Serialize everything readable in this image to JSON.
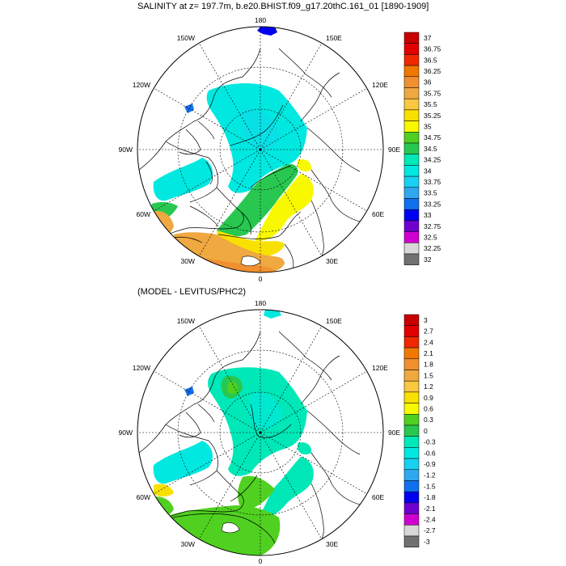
{
  "titles": {
    "top": "SALINITY at z= 197.7m, b.e20.BHIST.f09_g17.20thC.161_01 [1890-1909]",
    "bottom": "(MODEL - LEVITUS/PHC2)"
  },
  "longitude_labels": [
    "180",
    "150E",
    "120E",
    "90E",
    "60E",
    "30E",
    "0",
    "30W",
    "60W",
    "90W",
    "120W",
    "150W"
  ],
  "colorbars": {
    "top": {
      "labels": [
        "37",
        "36.75",
        "36.5",
        "36.25",
        "36",
        "35.75",
        "35.5",
        "35.25",
        "35",
        "34.75",
        "34.5",
        "34.25",
        "34",
        "33.75",
        "33.5",
        "33.25",
        "33",
        "32.75",
        "32.5",
        "32.25",
        "32"
      ],
      "colors": [
        "#c80000",
        "#e00000",
        "#f02800",
        "#f07800",
        "#f09030",
        "#f0a840",
        "#f8c840",
        "#f8e000",
        "#f8f800",
        "#50d020",
        "#28c850",
        "#00e8b8",
        "#00e8e0",
        "#18d0f0",
        "#30a8f0",
        "#1070f0",
        "#0000f0",
        "#7000d0",
        "#d000d0",
        "#d8d8d8",
        "#707070"
      ]
    },
    "bottom": {
      "labels": [
        "3",
        "2.7",
        "2.4",
        "2.1",
        "1.8",
        "1.5",
        "1.2",
        "0.9",
        "0.6",
        "0.3",
        "0",
        "-0.3",
        "-0.6",
        "-0.9",
        "-1.2",
        "-1.5",
        "-1.8",
        "-2.1",
        "-2.4",
        "-2.7",
        "-3"
      ],
      "colors": [
        "#c80000",
        "#e00000",
        "#f02800",
        "#f07800",
        "#f09030",
        "#f0a840",
        "#f8c840",
        "#f8e000",
        "#f8f800",
        "#50d020",
        "#28c850",
        "#00e8b8",
        "#00e8e0",
        "#18d0f0",
        "#30a8f0",
        "#1070f0",
        "#0000f0",
        "#7000d0",
        "#d000d0",
        "#d8d8d8",
        "#707070"
      ]
    }
  },
  "colors": {
    "frame": "#000000",
    "grid": "#000000",
    "coast": "#000000"
  }
}
